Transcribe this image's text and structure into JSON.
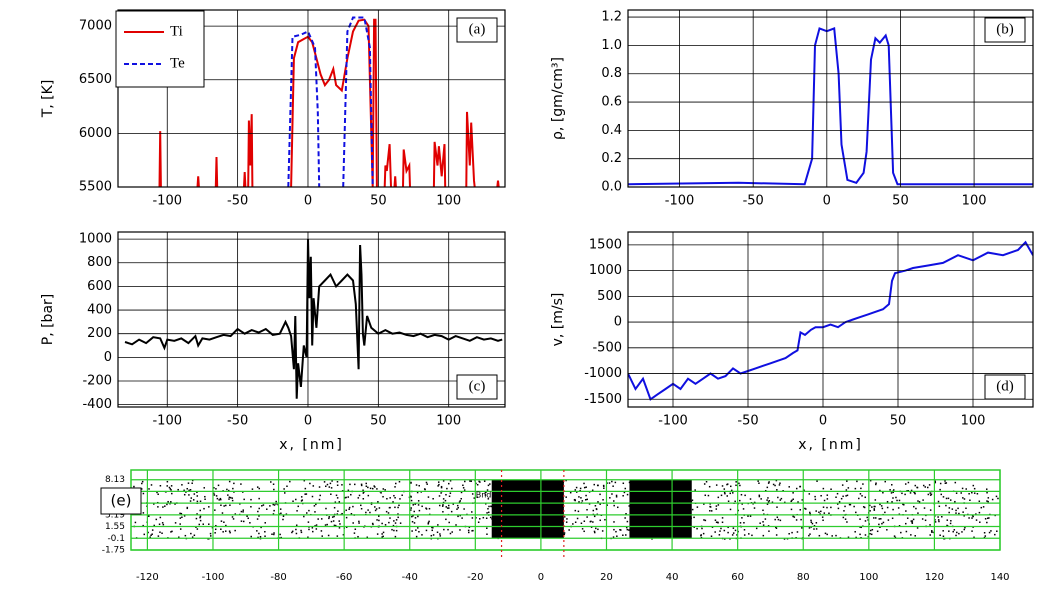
{
  "chart_data": [
    {
      "type": "line",
      "ylabel": "T, [K]",
      "annotation": "(a)",
      "xlim": [
        -135,
        140
      ],
      "xticks": [
        -100,
        -50,
        0,
        50,
        100
      ],
      "ylim": [
        5500,
        7150
      ],
      "yticks": [
        5500,
        6000,
        6500,
        7000
      ],
      "grid": true,
      "legend": "upper-left",
      "series": [
        {
          "name": "Ti",
          "color": "#e00000",
          "dash": false,
          "x": [
            -105.5,
            -105,
            -104.5,
            null,
            -78.5,
            -78,
            -77.5,
            null,
            -65.5,
            -65,
            -64.5,
            null,
            -45.5,
            -45,
            -44.5,
            null,
            -42.5,
            -42,
            -41,
            -40,
            -39.5,
            null,
            -12,
            -10,
            -7,
            -3,
            0,
            3,
            6,
            9,
            12,
            15,
            18,
            20,
            24,
            28,
            32,
            36,
            40,
            43,
            45,
            46,
            47,
            48,
            49,
            null,
            54.5,
            55,
            56,
            58,
            59,
            null,
            61.5,
            62,
            62.5,
            null,
            67.5,
            68,
            70,
            72,
            72.5,
            null,
            89.5,
            90,
            92,
            93,
            95,
            97,
            97.5,
            null,
            112.5,
            113,
            115,
            116,
            118,
            118.5,
            null,
            134.5,
            135,
            135.5
          ],
          "values": [
            5500,
            6020,
            5500,
            null,
            5500,
            5600,
            5500,
            null,
            5500,
            5780,
            5500,
            null,
            5500,
            5640,
            5500,
            null,
            5500,
            6120,
            5700,
            6180,
            5500,
            null,
            5500,
            6700,
            6850,
            6880,
            6900,
            6850,
            6700,
            6550,
            6450,
            6500,
            6600,
            6450,
            6400,
            6700,
            6950,
            7050,
            7060,
            7000,
            6000,
            5500,
            7060,
            7060,
            5500,
            null,
            5500,
            5700,
            5650,
            5900,
            5500,
            null,
            5500,
            5600,
            5500,
            null,
            5500,
            5850,
            5650,
            5700,
            5500,
            null,
            5500,
            5920,
            5700,
            5880,
            5600,
            5900,
            5500,
            null,
            5500,
            6200,
            5700,
            6100,
            5560,
            5500,
            null,
            5500,
            5560,
            5500
          ]
        },
        {
          "name": "Te",
          "color": "#1010e0",
          "dash": true,
          "x": [
            -14,
            -11,
            -5,
            0,
            5,
            7,
            8,
            null,
            25,
            28,
            32,
            40,
            44,
            46
          ],
          "values": [
            5500,
            6900,
            6920,
            6950,
            6800,
            6200,
            5500,
            null,
            5500,
            6950,
            7080,
            7080,
            6800,
            5500
          ]
        }
      ]
    },
    {
      "type": "line",
      "ylabel": "ρ, [gm/cm³]",
      "annotation": "(b)",
      "xlim": [
        -135,
        140
      ],
      "xticks": [
        -100,
        -50,
        0,
        50,
        100
      ],
      "ylim": [
        0,
        1.25
      ],
      "yticks": [
        {
          "value": 0,
          "label": "0.0"
        },
        0.2,
        0.4,
        0.6,
        0.8,
        {
          "value": 1,
          "label": "1.0"
        },
        1.2
      ],
      "grid": true,
      "series": [
        {
          "color": "#1010e0",
          "dash": false,
          "x": [
            -135,
            -60,
            -15,
            -10,
            -8,
            -5,
            0,
            5,
            8,
            10,
            14,
            20,
            25,
            27,
            30,
            33,
            36,
            40,
            42,
            45,
            48,
            140
          ],
          "values": [
            0.02,
            0.03,
            0.02,
            0.2,
            1.0,
            1.12,
            1.1,
            1.12,
            0.8,
            0.3,
            0.05,
            0.03,
            0.1,
            0.25,
            0.9,
            1.05,
            1.02,
            1.07,
            1.0,
            0.1,
            0.02,
            0.02
          ]
        }
      ]
    },
    {
      "type": "line",
      "ylabel": "P, [bar]",
      "xlabel": "x, [nm]",
      "annotation": "(c)",
      "xlim": [
        -135,
        140
      ],
      "xticks": [
        -100,
        -50,
        0,
        50,
        100
      ],
      "ylim": [
        -420,
        1060
      ],
      "yticks": [
        -400,
        -200,
        0,
        200,
        400,
        600,
        800,
        1000
      ],
      "grid": true,
      "series": [
        {
          "color": "#000000",
          "dash": false,
          "x": [
            -130,
            -125,
            -120,
            -115,
            -110,
            -105,
            -102,
            -100,
            -95,
            -90,
            -85,
            -80,
            -78,
            -75,
            -70,
            -65,
            -60,
            -55,
            -50,
            -45,
            -40,
            -35,
            -30,
            -25,
            -20,
            -16,
            -14,
            -12,
            -10,
            -9,
            -8,
            -7,
            -5,
            -3,
            -1,
            0,
            1,
            2,
            3,
            4,
            6,
            8,
            12,
            16,
            20,
            24,
            28,
            32,
            34,
            36,
            37,
            38,
            39,
            40,
            42,
            45,
            50,
            55,
            60,
            65,
            70,
            75,
            80,
            85,
            90,
            95,
            100,
            105,
            110,
            115,
            120,
            125,
            130,
            135,
            138
          ],
          "values": [
            130,
            110,
            150,
            120,
            170,
            160,
            80,
            150,
            140,
            160,
            120,
            180,
            100,
            160,
            150,
            170,
            190,
            180,
            240,
            200,
            230,
            210,
            240,
            190,
            200,
            300,
            250,
            180,
            -100,
            350,
            -350,
            -50,
            -250,
            100,
            0,
            1000,
            500,
            850,
            100,
            500,
            250,
            600,
            650,
            700,
            600,
            650,
            700,
            650,
            450,
            -100,
            950,
            700,
            200,
            100,
            350,
            250,
            200,
            230,
            200,
            210,
            190,
            180,
            200,
            170,
            190,
            180,
            150,
            180,
            160,
            140,
            170,
            150,
            160,
            140,
            150
          ]
        }
      ]
    },
    {
      "type": "line",
      "ylabel": "v, [m/s]",
      "xlabel": "x, [nm]",
      "annotation": "(d)",
      "xlim": [
        -130,
        140
      ],
      "xticks": [
        -100,
        -50,
        0,
        50,
        100
      ],
      "ylim": [
        -1650,
        1750
      ],
      "yticks": [
        -1500,
        -1000,
        -500,
        0,
        500,
        1000,
        1500
      ],
      "grid": true,
      "series": [
        {
          "color": "#1010e0",
          "dash": false,
          "x": [
            -130,
            -125,
            -120,
            -115,
            -110,
            -105,
            -100,
            -95,
            -90,
            -85,
            -80,
            -75,
            -70,
            -65,
            -60,
            -55,
            -50,
            -45,
            -40,
            -35,
            -30,
            -25,
            -20,
            -17,
            -15,
            -12,
            -8,
            -5,
            0,
            5,
            10,
            15,
            20,
            25,
            30,
            35,
            40,
            44,
            46,
            48,
            55,
            60,
            70,
            80,
            90,
            100,
            110,
            120,
            130,
            135,
            140
          ],
          "values": [
            -1000,
            -1300,
            -1100,
            -1500,
            -1400,
            -1300,
            -1200,
            -1300,
            -1100,
            -1200,
            -1100,
            -1000,
            -1100,
            -1050,
            -900,
            -1000,
            -950,
            -900,
            -850,
            -800,
            -750,
            -700,
            -600,
            -550,
            -200,
            -250,
            -150,
            -100,
            -100,
            -50,
            -100,
            0,
            50,
            100,
            150,
            200,
            250,
            350,
            800,
            950,
            1000,
            1050,
            1100,
            1150,
            1300,
            1200,
            1350,
            1300,
            1400,
            1550,
            1300
          ]
        }
      ]
    },
    {
      "type": "snapshot",
      "annotation": "(e)",
      "note": "Bnd",
      "xlim": [
        -125,
        140
      ],
      "xticks": [
        -120,
        -100,
        -80,
        -60,
        -40,
        -20,
        0,
        20,
        40,
        60,
        80,
        100,
        120,
        140
      ],
      "ylim": [
        -1.75,
        9.5
      ],
      "yticks": [
        -1.75,
        -0.1,
        1.55,
        3.19,
        4.84,
        6.49,
        8.13
      ],
      "grid": true,
      "regions": [
        [
          -15,
          7
        ],
        [
          27,
          46
        ]
      ],
      "markers": [
        -12,
        7
      ]
    }
  ]
}
